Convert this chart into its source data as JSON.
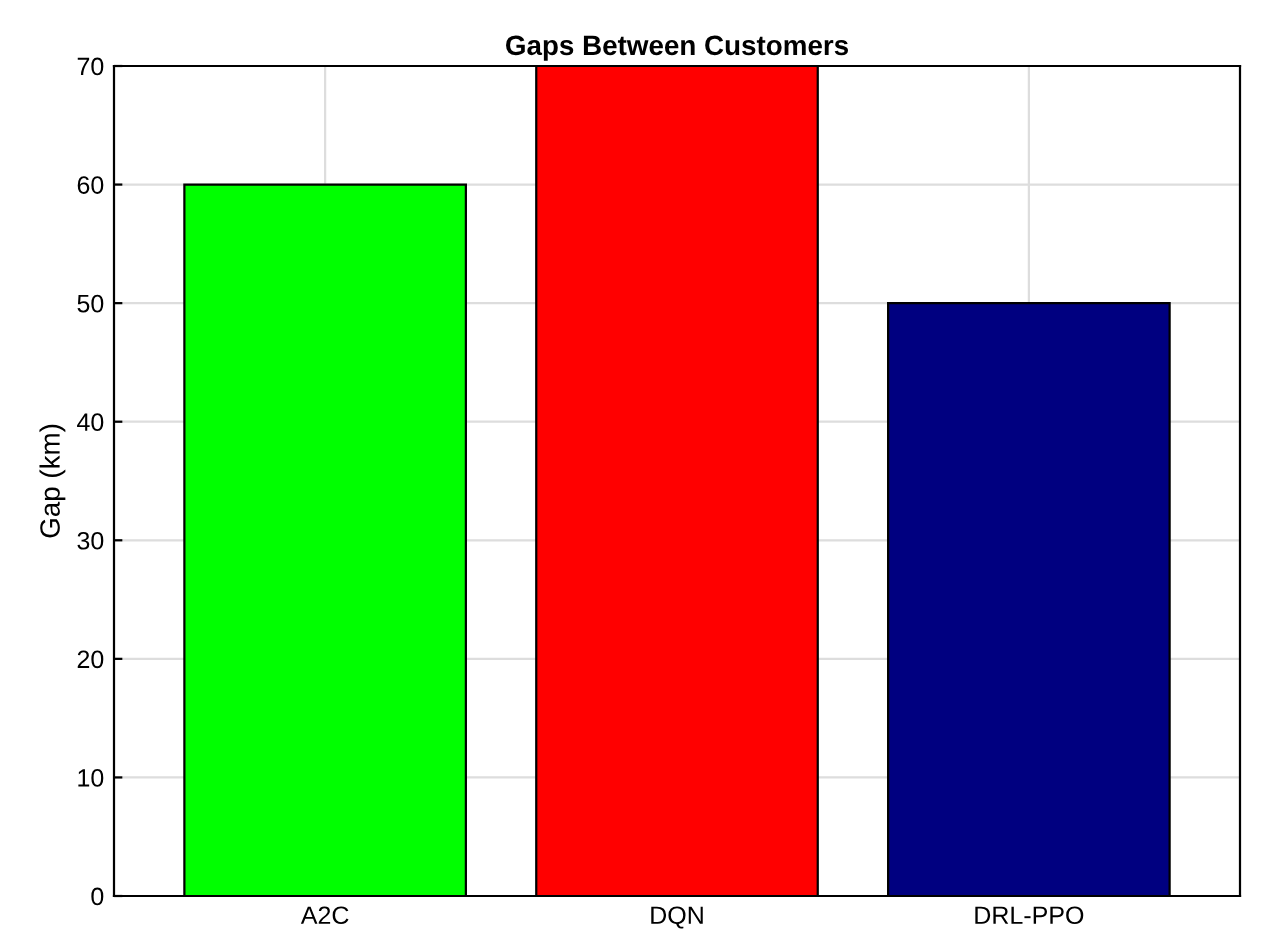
{
  "chart_data": {
    "type": "bar",
    "title": "Gaps Between Customers",
    "ylabel": "Gap (km)",
    "categories": [
      "A2C",
      "DQN",
      "DRL-PPO"
    ],
    "values": [
      60,
      70,
      50
    ],
    "colors": [
      "#00ff00",
      "#ff0000",
      "#000080"
    ],
    "ylim": [
      0,
      70
    ],
    "yticks": [
      0,
      10,
      20,
      30,
      40,
      50,
      60,
      70
    ],
    "grid": true
  }
}
